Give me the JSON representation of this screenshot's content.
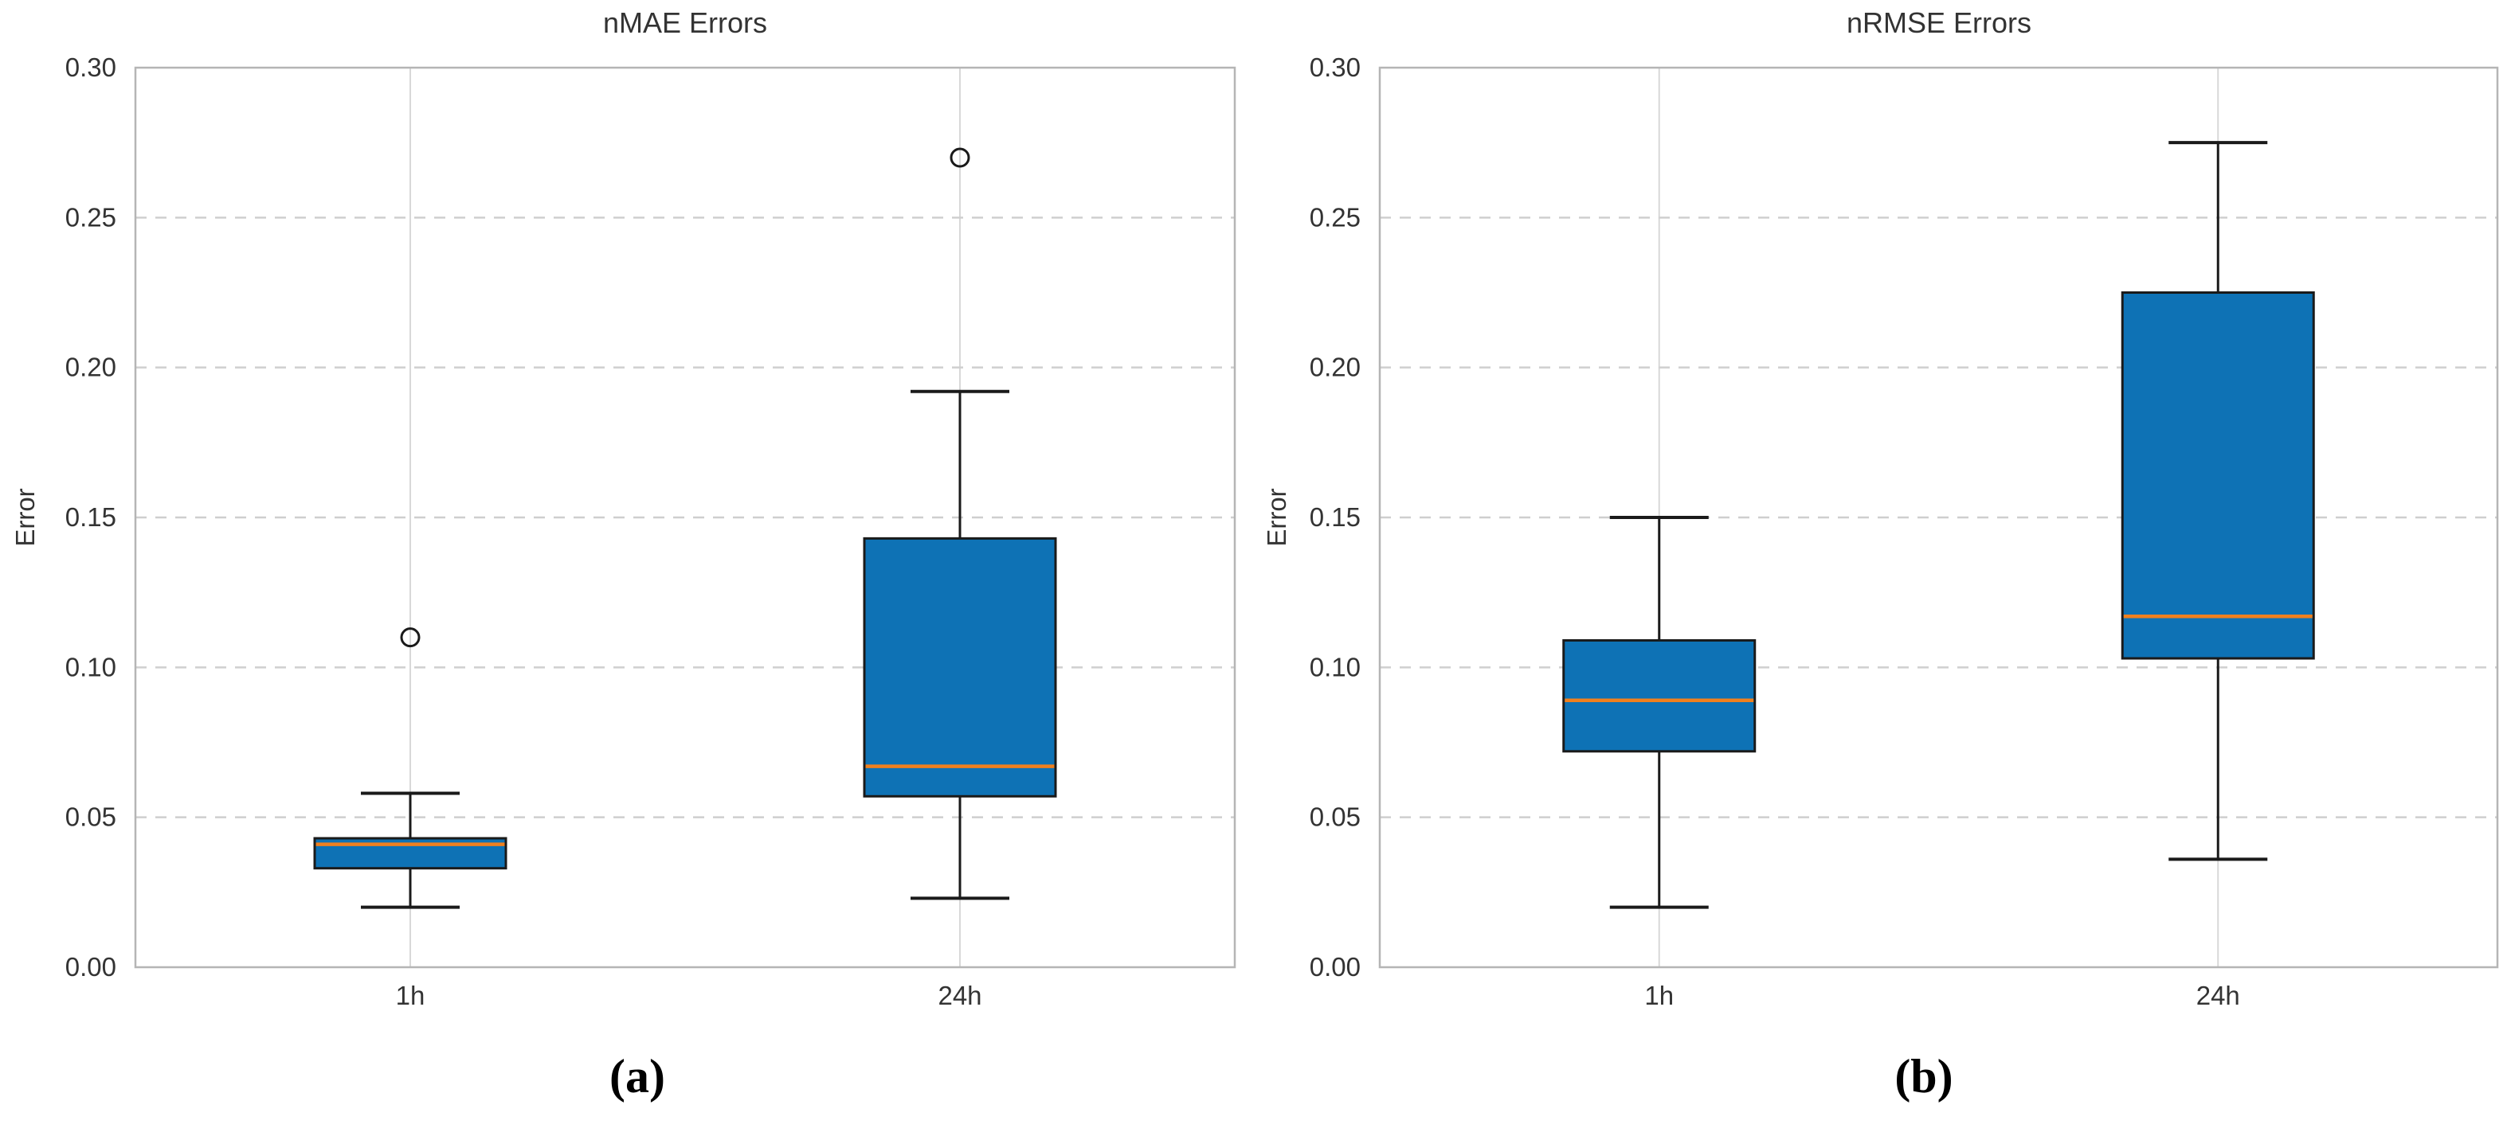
{
  "figure": {
    "kind": "two-panel box plot figure",
    "background": "#ffffff"
  },
  "style": {
    "box_fill": "#0e72b5",
    "median_color": "#f0801e",
    "whisker_color": "#1a1a1a",
    "box_edge_color": "#1a1a1a",
    "outlier_edge_color": "#1a1a1a",
    "spine_color": "#b5b5b5",
    "hgrid_color": "#cfcfcf",
    "vgrid_color": "#d8d8d8",
    "text_color": "#333333",
    "caption_color": "#000000"
  },
  "chart_data": [
    {
      "type": "box",
      "title": "nMAE Errors",
      "xlabel": "",
      "ylabel": "Error",
      "caption": "(a)",
      "categories": [
        "1h",
        "24h"
      ],
      "ylim": [
        0.0,
        0.3
      ],
      "yticks": [
        "0.00",
        "0.05",
        "0.10",
        "0.15",
        "0.20",
        "0.25",
        "0.30"
      ],
      "grid": "horizontal dashed at 0.05 steps, light vertical line at each category",
      "legend": "none",
      "boxes": [
        {
          "category": "1h",
          "whisker_low": 0.02,
          "q1": 0.033,
          "median": 0.041,
          "q3": 0.043,
          "whisker_high": 0.058,
          "outliers": [
            0.11
          ]
        },
        {
          "category": "24h",
          "whisker_low": 0.023,
          "q1": 0.057,
          "median": 0.067,
          "q3": 0.143,
          "whisker_high": 0.192,
          "outliers": [
            0.27
          ]
        }
      ]
    },
    {
      "type": "box",
      "title": "nRMSE Errors",
      "xlabel": "",
      "ylabel": "Error",
      "caption": "(b)",
      "categories": [
        "1h",
        "24h"
      ],
      "ylim": [
        0.0,
        0.3
      ],
      "yticks": [
        "0.00",
        "0.05",
        "0.10",
        "0.15",
        "0.20",
        "0.25",
        "0.30"
      ],
      "grid": "horizontal dashed at 0.05 steps, light vertical line at each category",
      "legend": "none",
      "boxes": [
        {
          "category": "1h",
          "whisker_low": 0.02,
          "q1": 0.072,
          "median": 0.089,
          "q3": 0.109,
          "whisker_high": 0.15,
          "outliers": []
        },
        {
          "category": "24h",
          "whisker_low": 0.036,
          "q1": 0.103,
          "median": 0.117,
          "q3": 0.225,
          "whisker_high": 0.275,
          "outliers": []
        }
      ]
    }
  ]
}
